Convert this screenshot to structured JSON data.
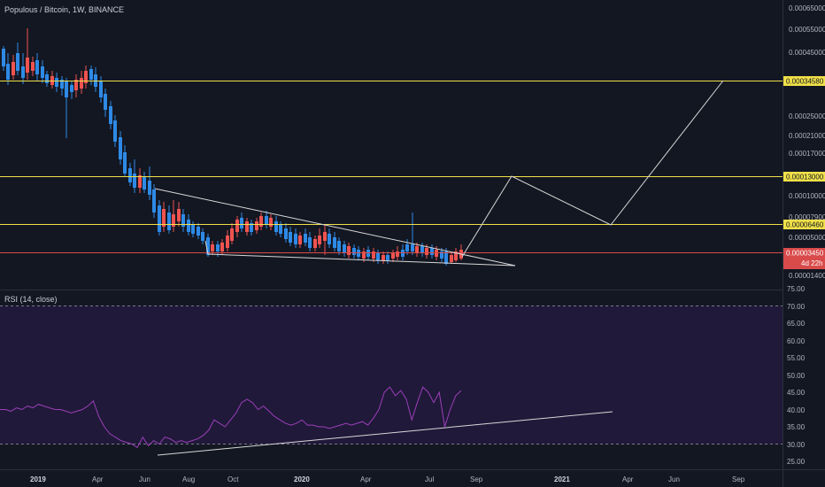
{
  "header": {
    "title": "Populous / Bitcoin, 1W, BINANCE"
  },
  "rsi": {
    "label": "RSI (14, close)"
  },
  "colors": {
    "background": "#131722",
    "rsi_band": "#20193a",
    "up_candle": "#ef5350",
    "down_candle": "#2e8ae6",
    "level_line": "#f0e048",
    "current_price_line": "#d94a4a",
    "rsi_line": "#9c3fb8",
    "trend_line": "#d8d8d8"
  },
  "chart_data": [
    {
      "type": "candlestick",
      "title": "Populous / Bitcoin, 1W, BINANCE",
      "x_tick_labels": [
        "2019",
        "Apr",
        "Jun",
        "Aug",
        "Oct",
        "2020",
        "Apr",
        "Jul",
        "Sep",
        "2021",
        "Apr",
        "Jun",
        "Sep"
      ],
      "y_tick_labels": [
        "0.00065000",
        "0.00055000",
        "0.00045000",
        "0.00025000",
        "0.00021000",
        "0.00017000",
        "0.00010000",
        "0.00005000",
        "0.00001400"
      ],
      "horizontal_levels": [
        {
          "label": "0.00034580",
          "color": "yellow"
        },
        {
          "label": "0.00013000",
          "color": "yellow"
        },
        {
          "label": "0.00006460",
          "color": "yellow"
        }
      ],
      "hidden_tick": "0.00007900",
      "current_price": {
        "label": "0.00003450",
        "countdown": "4d 22h"
      },
      "drawings": [
        "falling wedge",
        "projected zigzag path"
      ]
    },
    {
      "type": "line",
      "title": "RSI (14, close)",
      "y_tick_labels": [
        "75.00",
        "70.00",
        "65.00",
        "60.00",
        "55.00",
        "50.00",
        "45.00",
        "40.00",
        "35.00",
        "30.00",
        "25.00"
      ],
      "ylim": [
        25,
        75
      ],
      "bands": [
        30,
        70
      ],
      "values": [
        40,
        40,
        39.5,
        40.5,
        40,
        41,
        40.5,
        41.5,
        41,
        40.5,
        40,
        40,
        39.5,
        39,
        39.5,
        40,
        41,
        42.5,
        38,
        35,
        33,
        32,
        31,
        30.5,
        30,
        29,
        32,
        29.5,
        31,
        30,
        32,
        31.5,
        30.5,
        31,
        30.5,
        31,
        31.5,
        32.5,
        34,
        37,
        36,
        35,
        37,
        39,
        42,
        43,
        42,
        40,
        41,
        39.5,
        38,
        37,
        36,
        35.5,
        36,
        37,
        35.5,
        35.5,
        35,
        35,
        34.5,
        35,
        35.5,
        36,
        35.5,
        36,
        36.5,
        35.5,
        37.5,
        40,
        45,
        46.5,
        44,
        45.5,
        43,
        37,
        42,
        46.5,
        45,
        42,
        45,
        35,
        40,
        44,
        45.5
      ]
    }
  ]
}
